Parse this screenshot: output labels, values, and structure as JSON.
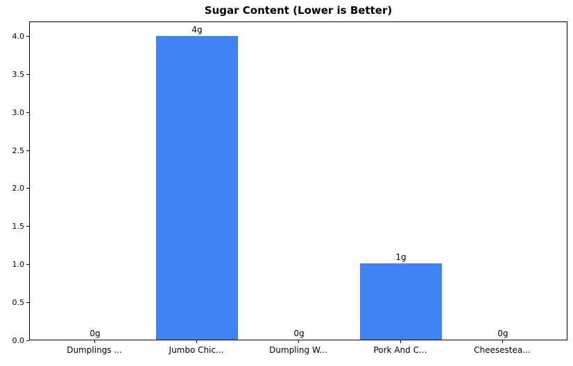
{
  "chart_data": {
    "type": "bar",
    "title": "Sugar Content (Lower is Better)",
    "categories": [
      "Dumplings ...",
      "Jumbo Chic...",
      "Dumpling W...",
      "Pork And C...",
      "Cheesestea..."
    ],
    "values": [
      0,
      4,
      0,
      1,
      0
    ],
    "bar_labels": [
      "0g",
      "4g",
      "0g",
      "1g",
      "0g"
    ],
    "xlabel": "",
    "ylabel": "",
    "ylim": [
      0,
      4.2
    ],
    "y_ticks": [
      "0.0",
      "0.5",
      "1.0",
      "1.5",
      "2.0",
      "2.5",
      "3.0",
      "3.5",
      "4.0"
    ],
    "bar_color": "#3E82F4",
    "axis_color": "#000000",
    "background_color": "#ffffff",
    "grid": false,
    "legend": null
  }
}
